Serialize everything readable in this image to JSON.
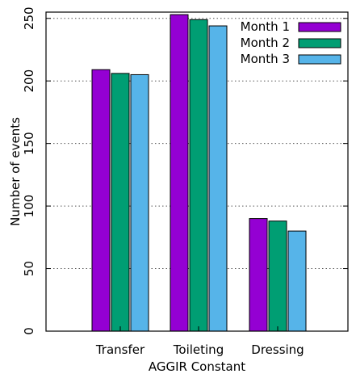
{
  "chart_data": {
    "type": "bar",
    "xlabel": "AGGIR Constant",
    "ylabel": "Number of events",
    "ylim": [
      0,
      255
    ],
    "yticks": [
      0,
      50,
      100,
      150,
      200,
      250
    ],
    "grid": "horizontal-dotted",
    "legend_position": "top-right",
    "categories": [
      "Transfer",
      "Toileting",
      "Dressing"
    ],
    "series": [
      {
        "name": "Month 1",
        "color": "#9400d3",
        "values": [
          209,
          253,
          90
        ]
      },
      {
        "name": "Month 2",
        "color": "#009e73",
        "values": [
          206,
          249,
          88
        ]
      },
      {
        "name": "Month 3",
        "color": "#56b4e9",
        "values": [
          205,
          244,
          80
        ]
      }
    ]
  }
}
